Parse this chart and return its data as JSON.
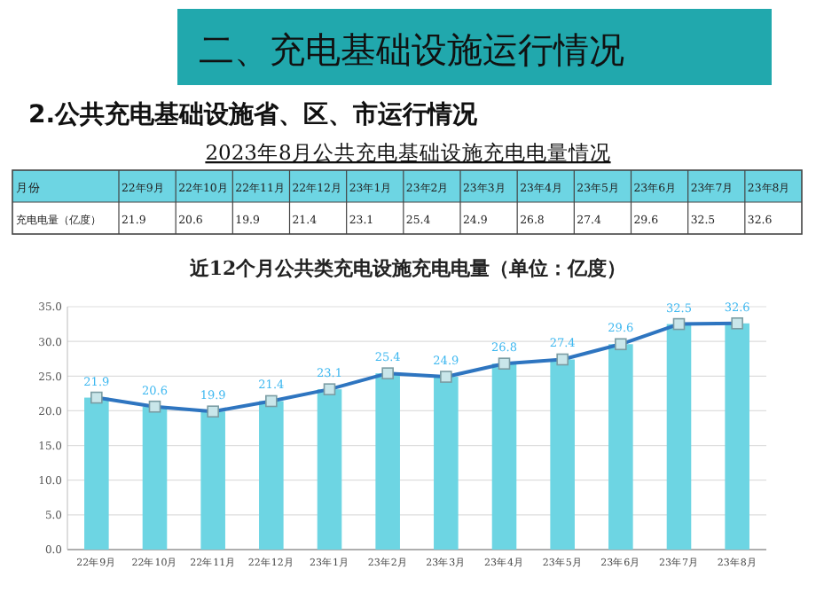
{
  "chart_data": [
    {
      "type": "other",
      "title": "2023年8月公共充电基础设施充电电量情况",
      "annotations": [
        "二、充电基础设施运行情况",
        "2.公共充电基础设施省、区、市运行情况",
        "月份",
        "充电电量（亿度）"
      ],
      "categories": [
        "22年9月",
        "22年10月",
        "22年11月",
        "22年12月",
        "23年1月",
        "23年2月",
        "23年3月",
        "23年4月",
        "23年5月",
        "23年6月",
        "23年7月",
        "23年8月"
      ],
      "values": [
        21.9,
        20.6,
        19.9,
        21.4,
        23.1,
        25.4,
        24.9,
        26.8,
        27.4,
        29.6,
        32.5,
        32.6
      ],
      "data_labels": true
    },
    {
      "type": "bar",
      "title": "近12个月公共类充电设施充电电量（单位：亿度）",
      "categories": [
        "22年9月",
        "22年10月",
        "22年11月",
        "22年12月",
        "23年1月",
        "23年2月",
        "23年3月",
        "23年4月",
        "23年5月",
        "23年6月",
        "23年7月",
        "23年8月"
      ],
      "series": [
        {
          "color": "#6dd5e3",
          "values": [
            21.9,
            20.6,
            19.9,
            21.4,
            23.1,
            25.4,
            24.9,
            26.8,
            27.4,
            29.6,
            32.5,
            32.6
          ]
        },
        {
          "type": "line",
          "color": "#2e75c0",
          "marker": "square",
          "values": [
            21.9,
            20.6,
            19.9,
            21.4,
            23.1,
            25.4,
            24.9,
            26.8,
            27.4,
            29.6,
            32.5,
            32.6
          ],
          "value_labels": [
            "21.9",
            "20.6",
            "19.9",
            "21.4",
            "23.1",
            "25.4",
            "24.9",
            "26.8",
            "27.4",
            "29.6",
            "32.5",
            "32.6"
          ]
        }
      ],
      "ylim": [
        0,
        35
      ],
      "yticks": [
        {
          "value": 0,
          "label": "0.0"
        },
        {
          "value": 5,
          "label": "5.0"
        },
        {
          "value": 10,
          "label": "10.0"
        },
        {
          "value": 15,
          "label": "15.0"
        },
        {
          "value": 20,
          "label": "20.0"
        },
        {
          "value": 25,
          "label": "25.0"
        },
        {
          "value": 30,
          "label": "30.0"
        },
        {
          "value": 35,
          "label": "35.0"
        }
      ],
      "grid": "y"
    }
  ]
}
